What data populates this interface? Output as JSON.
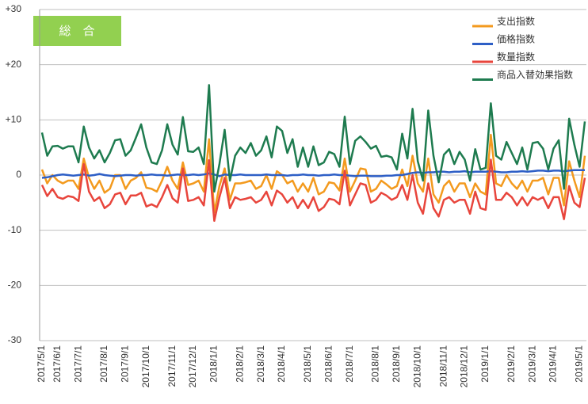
{
  "chart_data": {
    "type": "line",
    "annotation": "総　合",
    "categories": [
      "2017/5/1",
      null,
      null,
      "2017/6/1",
      null,
      null,
      null,
      "2017/7/1",
      null,
      null,
      null,
      null,
      "2017/8/1",
      null,
      null,
      null,
      "2017/9/1",
      null,
      null,
      null,
      "2017/10/1",
      null,
      null,
      null,
      null,
      "2017/11/1",
      null,
      null,
      null,
      "2017/12/1",
      null,
      null,
      null,
      "2018/1/1",
      null,
      null,
      null,
      null,
      "2018/2/1",
      null,
      null,
      null,
      "2018/3/1",
      null,
      null,
      null,
      "2018/4/1",
      null,
      null,
      null,
      null,
      "2018/5/1",
      null,
      null,
      null,
      "2018/6/1",
      null,
      null,
      null,
      "2018/7/1",
      null,
      null,
      null,
      null,
      "2018/8/1",
      null,
      null,
      null,
      "2018/9/1",
      null,
      null,
      null,
      "2018/10/1",
      null,
      null,
      null,
      null,
      "2018/11/1",
      null,
      null,
      null,
      "2018/12/1",
      null,
      null,
      null,
      "2019/1/1",
      null,
      null,
      null,
      null,
      "2019/2/1",
      null,
      null,
      null,
      "2019/3/1",
      null,
      null,
      null,
      "2019/4/1",
      null,
      null,
      null,
      null,
      "2019/5/1",
      null
    ],
    "series": [
      {
        "name": "支出指数",
        "color": "#f39a1e",
        "values": [
          1.0,
          -1.5,
          0,
          -1,
          -1.5,
          -1,
          -1,
          -2.5,
          3.0,
          -0.5,
          -2.5,
          -1,
          -3.2,
          -2.5,
          0,
          0,
          -2.5,
          -1,
          -0.5,
          0.5,
          -2.3,
          -2.5,
          -3,
          -1,
          1.5,
          -1,
          -2.5,
          2.3,
          -1.8,
          -1.5,
          -1,
          -3,
          6.5,
          -6.8,
          -2,
          1.2,
          -4.5,
          -1.5,
          -1.5,
          -1.3,
          -1,
          -2.5,
          -2,
          0,
          -2.5,
          0.7,
          0,
          -1.5,
          -1,
          -3,
          -1.5,
          -3,
          -0.5,
          -3.5,
          -3,
          -1.3,
          -1.5,
          -2.8,
          3.0,
          -3,
          -1,
          1.2,
          1,
          -3,
          -2.5,
          -1,
          -1.7,
          -2.5,
          -2,
          1.0,
          -2,
          3.5,
          -1.5,
          -3,
          3.0,
          -3.5,
          -5,
          -2,
          -1,
          -3,
          -1.5,
          -1.5,
          -4,
          -1.5,
          -3,
          -3.5,
          7.3,
          -1.5,
          -2,
          0,
          -1.5,
          -2.5,
          -1,
          -3,
          -1,
          -1,
          -0.5,
          -3.5,
          -0.5,
          -0.5,
          -5.5,
          2.5,
          -1,
          -4,
          3.5
        ]
      },
      {
        "name": "価格指数",
        "color": "#2e5fc6",
        "values": [
          -0.5,
          -0.4,
          -0.2,
          0,
          0.1,
          0,
          -0.1,
          0,
          0.1,
          -0.1,
          0,
          0.2,
          0,
          -0.1,
          -0.2,
          -0.1,
          0,
          0,
          -0.1,
          0,
          0,
          0.1,
          0,
          0,
          -0.1,
          0,
          0.1,
          0,
          0,
          0.1,
          0,
          0.1,
          0.3,
          0.1,
          -0.2,
          0.1,
          0,
          0,
          0.1,
          0,
          0,
          0,
          0,
          0.1,
          0,
          0,
          0,
          -0.1,
          0,
          0,
          0.1,
          0,
          0,
          -0.1,
          0,
          0,
          0.1,
          0,
          0,
          -0.1,
          -0.2,
          -0.1,
          -0.1,
          -0.2,
          -0.2,
          -0.2,
          -0.1,
          -0.1,
          0,
          0,
          0.2,
          0.4,
          0.5,
          0.4,
          0.5,
          0.5,
          0.6,
          0.6,
          0.5,
          0.6,
          0.6,
          0.7,
          0.5,
          0.6,
          0.6,
          0.6,
          0.7,
          0.6,
          0.5,
          0.5,
          0.6,
          0.6,
          0.7,
          0.6,
          0.7,
          0.8,
          0.8,
          0.7,
          0.8,
          0.8,
          0.7,
          0.8,
          0.9,
          0.9,
          0.9
        ]
      },
      {
        "name": "数量指数",
        "color": "#e8453c",
        "values": [
          -1.8,
          -3.8,
          -2.5,
          -4,
          -4.3,
          -3.8,
          -4,
          -4.7,
          2.0,
          -3,
          -4.7,
          -4,
          -6,
          -5.3,
          -3.5,
          -3.2,
          -5.3,
          -3.7,
          -3.7,
          -3.2,
          -5.7,
          -5.3,
          -5.8,
          -4,
          -1.8,
          -4.2,
          -5,
          1.2,
          -4.7,
          -4.5,
          -4,
          -5.5,
          2.7,
          -8.3,
          -4,
          -0.5,
          -6,
          -4,
          -4.5,
          -4.3,
          -4,
          -5,
          -4.5,
          -3,
          -5.5,
          -2.8,
          -3.5,
          -5,
          -4,
          -6,
          -4.5,
          -6,
          -4,
          -6.5,
          -5.8,
          -4.3,
          -4.5,
          -5.3,
          0.8,
          -5.5,
          -3.5,
          -1.5,
          -1.8,
          -5,
          -4.5,
          -3.2,
          -3.7,
          -4.5,
          -4,
          -1.8,
          -4.5,
          0,
          -5,
          -7,
          -1.5,
          -6,
          -7.5,
          -4.5,
          -4,
          -5,
          -4.5,
          -4.5,
          -7,
          -3,
          -6,
          -6.3,
          2.8,
          -4.5,
          -4.5,
          -3.2,
          -4,
          -5.5,
          -4,
          -5.5,
          -4,
          -4.5,
          -4,
          -6,
          -4,
          -4,
          -8,
          -2,
          -5,
          -5.8,
          -0.5
        ]
      },
      {
        "name": "商品入替効果指数",
        "color": "#1e7b4f",
        "values": [
          7.7,
          3.5,
          5.2,
          5.3,
          4.8,
          5.2,
          5.2,
          2.3,
          8.8,
          5.0,
          3.0,
          4.5,
          2.3,
          4.0,
          6.3,
          6.5,
          3.5,
          4.5,
          6.8,
          9.2,
          5.0,
          2.3,
          2.0,
          4.5,
          9.2,
          5.5,
          3.7,
          10.5,
          4.3,
          4.2,
          5.0,
          2.0,
          16.3,
          -3.0,
          2.0,
          8.2,
          -1.0,
          3.5,
          5.0,
          4.0,
          5.8,
          3.5,
          4.5,
          7.0,
          3.2,
          8.8,
          8.0,
          4.0,
          6.5,
          1.5,
          5.0,
          1.5,
          5.2,
          1.8,
          2.3,
          4.2,
          3.8,
          1.5,
          10.6,
          2.0,
          6.2,
          7.0,
          6.0,
          4.8,
          5.3,
          3.3,
          3.5,
          3.2,
          1.0,
          7.5,
          3.0,
          12.0,
          2.5,
          -1.0,
          11.7,
          3.5,
          -1.3,
          3.7,
          4.7,
          2.0,
          4.2,
          2.8,
          -1.0,
          4.7,
          1.0,
          1.3,
          13.0,
          3.5,
          2.8,
          6.0,
          4.0,
          2.0,
          5.0,
          1.0,
          5.8,
          6.0,
          4.8,
          1.0,
          4.8,
          6.3,
          -2.5,
          10.2,
          5.5,
          1.5,
          9.7
        ]
      }
    ],
    "ylim": [
      -30,
      30
    ],
    "yticks": [
      {
        "value": 30,
        "label": "+30"
      },
      {
        "value": 20,
        "label": "+20"
      },
      {
        "value": 10,
        "label": "+10"
      },
      0,
      -10,
      -20,
      -30
    ],
    "grid": true,
    "legend": "top-right"
  }
}
